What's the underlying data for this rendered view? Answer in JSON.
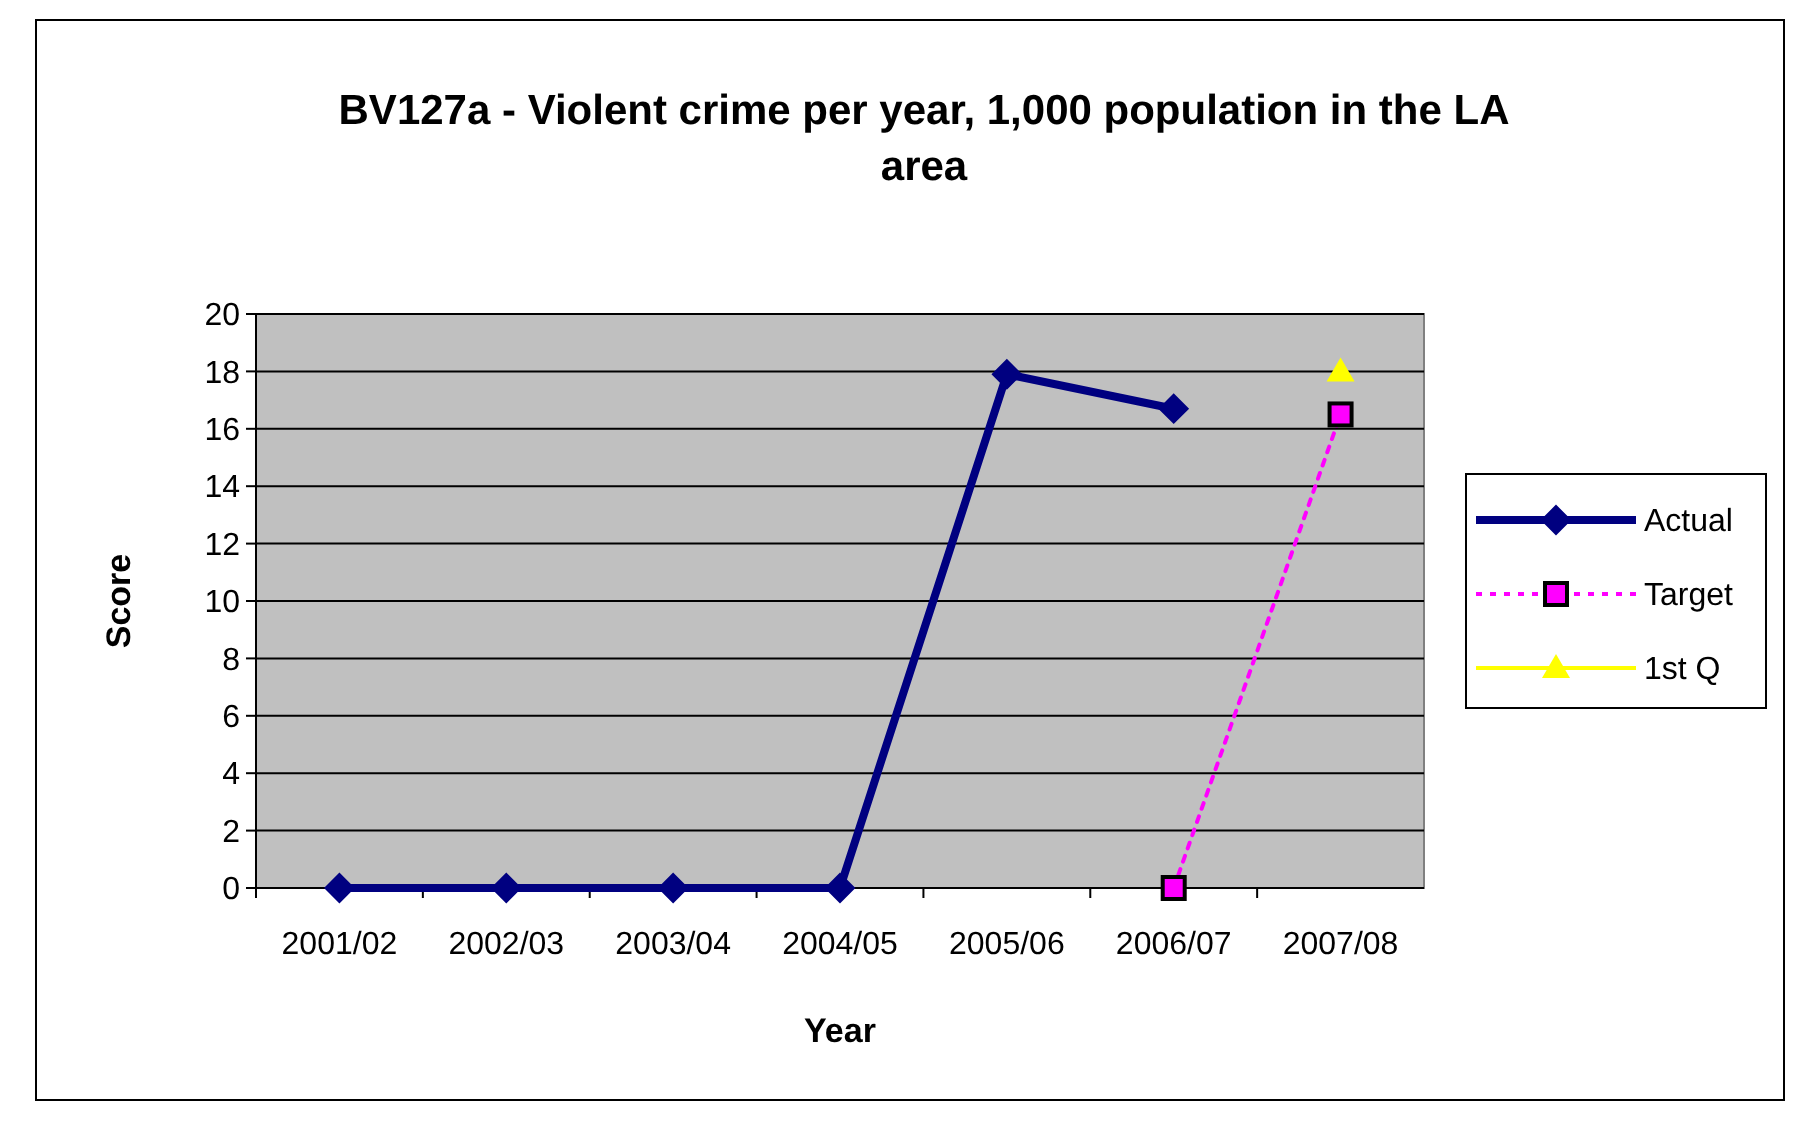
{
  "chart_data": {
    "type": "line",
    "title": "BV127a - Violent crime per year, 1,000 population  in the LA area",
    "xlabel": "Year",
    "ylabel": "Score",
    "categories": [
      "2001/02",
      "2002/03",
      "2003/04",
      "2004/05",
      "2005/06",
      "2006/07",
      "2007/08"
    ],
    "series": [
      {
        "name": "Actual",
        "color": "#000080",
        "values": [
          0,
          0,
          0,
          0,
          17.9,
          16.7,
          null
        ],
        "marker": "diamond",
        "line_style": "solid"
      },
      {
        "name": "Target",
        "color": "#ff00ff",
        "values": [
          null,
          null,
          null,
          null,
          null,
          0,
          16.5
        ],
        "marker": "square",
        "line_style": "dotted"
      },
      {
        "name": "1st Q",
        "color": "#ffff00",
        "values": [
          null,
          null,
          null,
          null,
          null,
          null,
          18
        ],
        "marker": "triangle",
        "line_style": "solid"
      }
    ],
    "ylim": [
      0,
      20
    ],
    "yticks": [
      0,
      2,
      4,
      6,
      8,
      10,
      12,
      14,
      16,
      18,
      20
    ],
    "grid": "y",
    "legend": "right"
  }
}
